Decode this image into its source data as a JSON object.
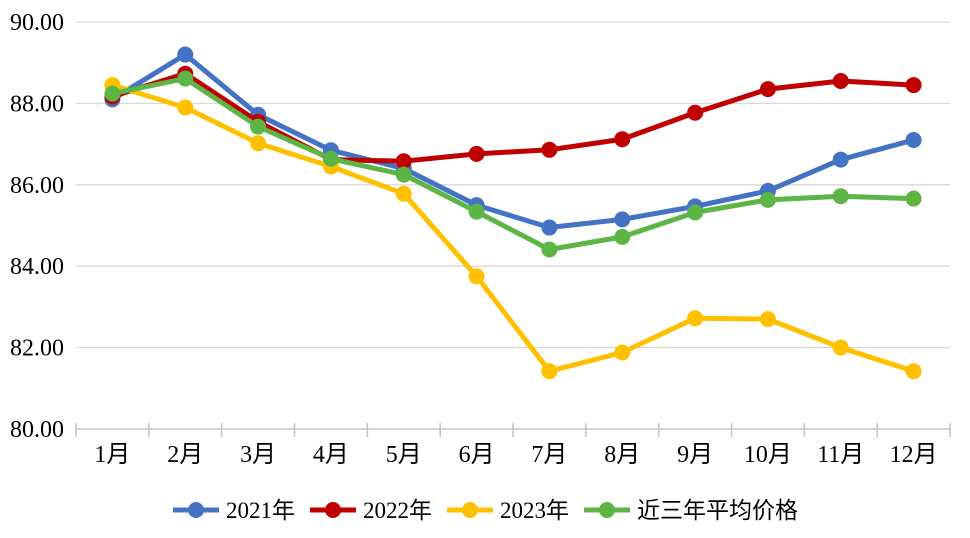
{
  "chart_data": {
    "type": "line",
    "categories": [
      "1月",
      "2月",
      "3月",
      "4月",
      "5月",
      "6月",
      "7月",
      "8月",
      "9月",
      "10月",
      "11月",
      "12月"
    ],
    "series": [
      {
        "name": "2021年",
        "color": "#4472C4",
        "values": [
          88.1,
          89.2,
          87.72,
          86.85,
          86.4,
          85.5,
          84.95,
          85.15,
          85.47,
          85.85,
          86.62,
          87.1
        ]
      },
      {
        "name": "2022年",
        "color": "#C00000",
        "values": [
          88.17,
          88.73,
          87.55,
          86.62,
          86.58,
          86.76,
          86.86,
          87.12,
          87.77,
          88.35,
          88.55,
          88.45
        ]
      },
      {
        "name": "2023年",
        "color": "#FFC000",
        "values": [
          88.45,
          87.9,
          87.02,
          86.45,
          85.78,
          83.75,
          81.42,
          81.88,
          82.72,
          82.7,
          82.0,
          81.42
        ]
      },
      {
        "name": "近三年平均价格",
        "color": "#5CB544",
        "values": [
          88.24,
          88.61,
          87.43,
          86.64,
          86.25,
          85.34,
          84.41,
          84.72,
          85.32,
          85.63,
          85.72,
          85.66
        ]
      }
    ],
    "ylim": [
      80,
      90
    ],
    "y_ticks": [
      {
        "value": 90,
        "label": "90.00"
      },
      {
        "value": 88,
        "label": "88.00"
      },
      {
        "value": 86,
        "label": "86.00"
      },
      {
        "value": 84,
        "label": "84.00"
      },
      {
        "value": 82,
        "label": "82.00"
      },
      {
        "value": 80,
        "label": "80.00"
      }
    ],
    "grid": "horizontal",
    "legend_position": "bottom",
    "marker": "circle"
  },
  "style_colors": {
    "gridline": "#D9D9D9",
    "axis": "#C6C6C6",
    "tick": "#C6C6C6",
    "label_text": "#000000",
    "background": "#FFFFFF"
  }
}
